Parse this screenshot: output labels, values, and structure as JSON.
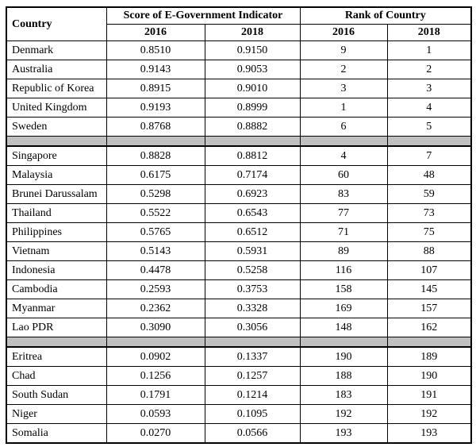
{
  "colors": {
    "background": "#ffffff",
    "border": "#000000",
    "separator_fill": "#c0c0c0",
    "text": "#000000"
  },
  "chart_data": {
    "type": "table",
    "title": "",
    "header": {
      "country_label": "Country",
      "score_group_label": "Score of E-Government Indicator",
      "rank_group_label": "Rank of Country",
      "score_years": [
        "2016",
        "2018"
      ],
      "rank_years": [
        "2016",
        "2018"
      ]
    },
    "columns": [
      "Country",
      "Score 2016",
      "Score 2018",
      "Rank 2016",
      "Rank 2018"
    ],
    "row_groups": [
      {
        "rows": [
          [
            "Denmark",
            "0.8510",
            "0.9150",
            "9",
            "1"
          ],
          [
            "Australia",
            "0.9143",
            "0.9053",
            "2",
            "2"
          ],
          [
            "Republic of Korea",
            "0.8915",
            "0.9010",
            "3",
            "3"
          ],
          [
            "United Kingdom",
            "0.9193",
            "0.8999",
            "1",
            "4"
          ],
          [
            "Sweden",
            "0.8768",
            "0.8882",
            "6",
            "5"
          ]
        ]
      },
      {
        "rows": [
          [
            "Singapore",
            "0.8828",
            "0.8812",
            "4",
            "7"
          ],
          [
            "Malaysia",
            "0.6175",
            "0.7174",
            "60",
            "48"
          ],
          [
            "Brunei Darussalam",
            "0.5298",
            "0.6923",
            "83",
            "59"
          ],
          [
            "Thailand",
            "0.5522",
            "0.6543",
            "77",
            "73"
          ],
          [
            "Philippines",
            "0.5765",
            "0.6512",
            "71",
            "75"
          ],
          [
            "Vietnam",
            "0.5143",
            "0.5931",
            "89",
            "88"
          ],
          [
            "Indonesia",
            "0.4478",
            "0.5258",
            "116",
            "107"
          ],
          [
            "Cambodia",
            "0.2593",
            "0.3753",
            "158",
            "145"
          ],
          [
            "Myanmar",
            "0.2362",
            "0.3328",
            "169",
            "157"
          ],
          [
            "Lao PDR",
            "0.3090",
            "0.3056",
            "148",
            "162"
          ]
        ]
      },
      {
        "rows": [
          [
            "Eritrea",
            "0.0902",
            "0.1337",
            "190",
            "189"
          ],
          [
            "Chad",
            "0.1256",
            "0.1257",
            "188",
            "190"
          ],
          [
            "South Sudan",
            "0.1791",
            "0.1214",
            "183",
            "191"
          ],
          [
            "Niger",
            "0.0593",
            "0.1095",
            "192",
            "192"
          ],
          [
            "Somalia",
            "0.0270",
            "0.0566",
            "193",
            "193"
          ]
        ]
      }
    ]
  }
}
